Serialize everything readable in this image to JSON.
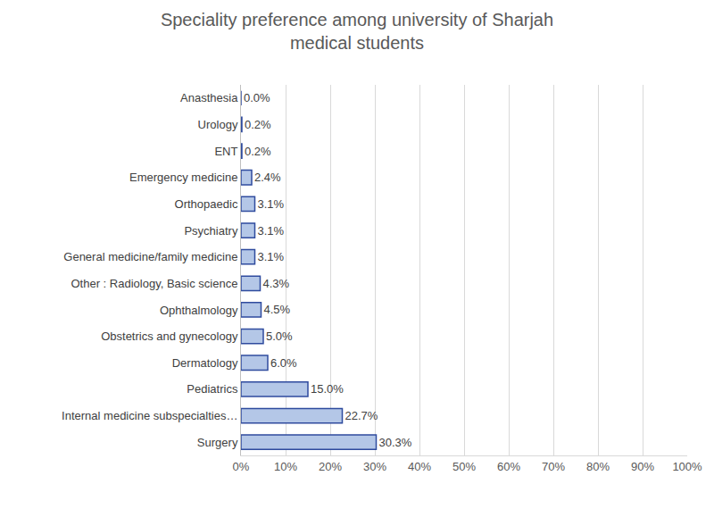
{
  "chart_data": {
    "type": "bar",
    "orientation": "horizontal",
    "title": "Speciality preference among university of Sharjah\nmedical students",
    "categories": [
      "Anasthesia",
      "Urology",
      "ENT",
      "Emergency medicine",
      "Orthopaedic",
      "Psychiatry",
      "General medicine/family medicine",
      "Other : Radiology, Basic science",
      "Ophthalmology",
      "Obstetrics and gynecology",
      "Dermatology",
      "Pediatrics",
      "Internal medicine subspecialties…",
      "Surgery"
    ],
    "values": [
      0.0,
      0.2,
      0.2,
      2.4,
      3.1,
      3.1,
      3.1,
      4.3,
      4.5,
      5.0,
      6.0,
      15.0,
      22.7,
      30.3
    ],
    "value_labels": [
      "0.0%",
      "0.2%",
      "0.2%",
      "2.4%",
      "3.1%",
      "3.1%",
      "3.1%",
      "4.3%",
      "4.5%",
      "5.0%",
      "6.0%",
      "15.0%",
      "22.7%",
      "30.3%"
    ],
    "data_labels": true,
    "color": "#b4c7e7",
    "xlim": [
      0,
      100
    ],
    "xticks": [
      {
        "value": 0,
        "label": "0%"
      },
      {
        "value": 10,
        "label": "10%"
      },
      {
        "value": 20,
        "label": "20%"
      },
      {
        "value": 30,
        "label": "30%"
      },
      {
        "value": 40,
        "label": "40%"
      },
      {
        "value": 50,
        "label": "50%"
      },
      {
        "value": 60,
        "label": "60%"
      },
      {
        "value": 70,
        "label": "70%"
      },
      {
        "value": 80,
        "label": "80%"
      },
      {
        "value": 90,
        "label": "90%"
      },
      {
        "value": 100,
        "label": "100%"
      }
    ],
    "grid": true
  }
}
